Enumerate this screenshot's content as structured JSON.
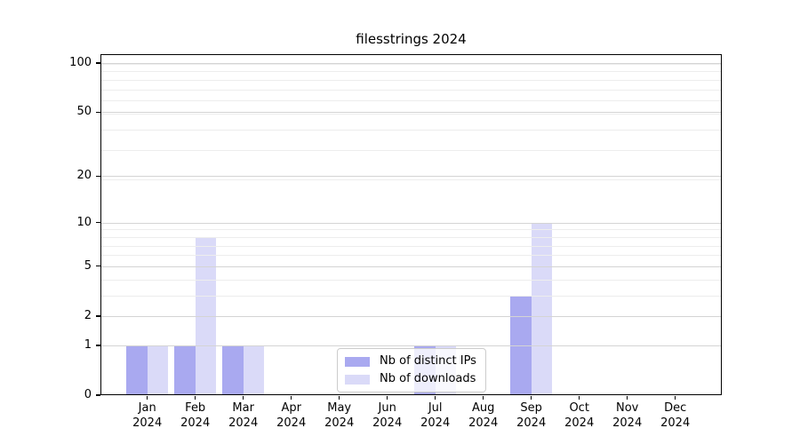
{
  "chart_data": {
    "type": "bar",
    "title": "filesstrings 2024",
    "categories": [
      "Jan",
      "Feb",
      "Mar",
      "Apr",
      "May",
      "Jun",
      "Jul",
      "Aug",
      "Sep",
      "Oct",
      "Nov",
      "Dec"
    ],
    "year": "2024",
    "series": [
      {
        "name": "Nb of distinct IPs",
        "color": "#a9a9f0",
        "values": [
          1,
          1,
          1,
          0,
          0,
          0,
          1,
          0,
          3,
          0,
          0,
          0
        ]
      },
      {
        "name": "Nb of downloads",
        "color": "#dadaf8",
        "values": [
          1,
          8,
          1,
          0,
          0,
          0,
          1,
          0,
          10,
          0,
          0,
          0
        ]
      }
    ],
    "yaxis": {
      "scale": "log10(1+x)",
      "major_ticks": [
        0,
        1,
        2,
        5,
        10,
        20,
        50,
        100
      ],
      "minor_ticks": [
        3,
        4,
        6,
        7,
        8,
        9,
        19,
        29,
        39,
        49,
        59,
        69,
        79,
        89,
        99
      ],
      "top_value": 113
    },
    "xlabel": "",
    "ylabel": "",
    "legend": {
      "position": "inside-bottom-center"
    },
    "grid": {
      "major_color": "#d4d4d4",
      "minor_color": "#ededed"
    }
  }
}
